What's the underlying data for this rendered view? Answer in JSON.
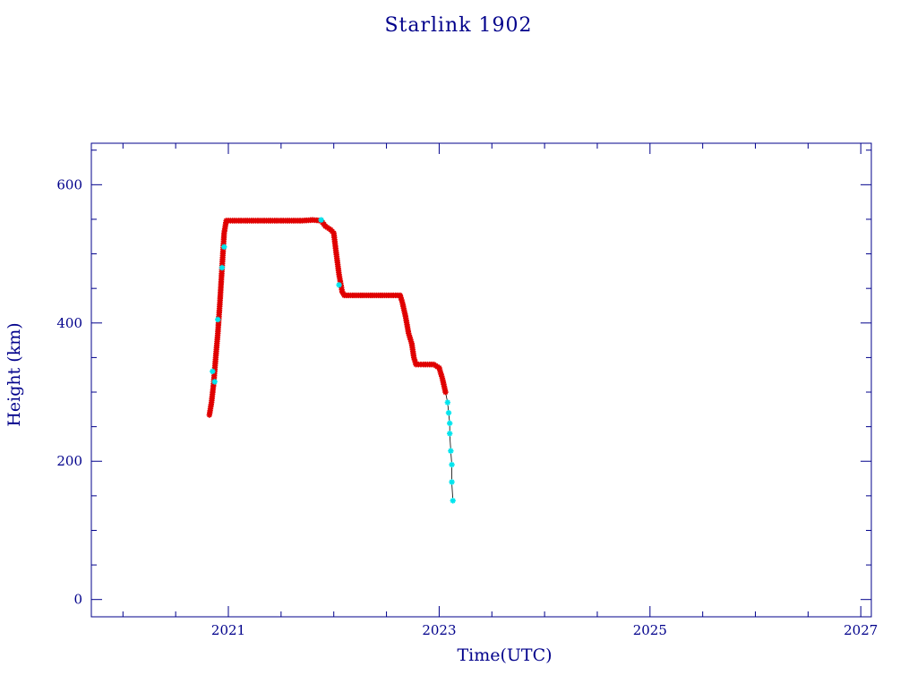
{
  "chart_data": {
    "type": "scatter",
    "title": "Starlink 1902",
    "xlabel": "Time(UTC)",
    "ylabel": "Height (km)",
    "xlim": [
      2019.7,
      2027.1
    ],
    "ylim": [
      -25,
      660
    ],
    "x_ticks": [
      2021,
      2023,
      2025,
      2027
    ],
    "y_ticks": [
      0,
      200,
      400,
      600
    ],
    "grid": false,
    "colors": {
      "axes": "#00008b",
      "series_primary": "#e00000",
      "series_secondary": "#00e5ee",
      "trace": "#000000"
    },
    "series": [
      {
        "values": [
          [
            2020.82,
            267
          ],
          [
            2020.84,
            285
          ],
          [
            2020.86,
            312
          ],
          [
            2020.88,
            350
          ],
          [
            2020.9,
            385
          ],
          [
            2020.92,
            430
          ],
          [
            2020.94,
            480
          ],
          [
            2020.96,
            530
          ],
          [
            2020.98,
            548
          ],
          [
            2021.1,
            548
          ],
          [
            2021.3,
            548
          ],
          [
            2021.5,
            548
          ],
          [
            2021.7,
            548
          ],
          [
            2021.8,
            549
          ],
          [
            2021.88,
            548
          ],
          [
            2021.92,
            540
          ],
          [
            2021.97,
            535
          ],
          [
            2022.0,
            530
          ],
          [
            2022.02,
            505
          ],
          [
            2022.05,
            470
          ],
          [
            2022.08,
            445
          ],
          [
            2022.1,
            440
          ],
          [
            2022.2,
            440
          ],
          [
            2022.35,
            440
          ],
          [
            2022.5,
            440
          ],
          [
            2022.63,
            440
          ],
          [
            2022.65,
            430
          ],
          [
            2022.68,
            410
          ],
          [
            2022.71,
            385
          ],
          [
            2022.74,
            370
          ],
          [
            2022.76,
            350
          ],
          [
            2022.78,
            340
          ],
          [
            2022.85,
            340
          ],
          [
            2022.95,
            340
          ],
          [
            2023.0,
            335
          ],
          [
            2023.03,
            320
          ],
          [
            2023.06,
            300
          ]
        ]
      },
      {
        "values": [
          [
            2020.85,
            330
          ],
          [
            2020.87,
            315
          ],
          [
            2020.9,
            405
          ],
          [
            2020.94,
            480
          ],
          [
            2020.96,
            510
          ],
          [
            2021.88,
            549
          ],
          [
            2022.05,
            455
          ],
          [
            2023.08,
            285
          ],
          [
            2023.09,
            270
          ],
          [
            2023.1,
            255
          ],
          [
            2023.1,
            240
          ],
          [
            2023.11,
            215
          ],
          [
            2023.12,
            195
          ],
          [
            2023.12,
            170
          ],
          [
            2023.13,
            143
          ]
        ]
      }
    ]
  }
}
